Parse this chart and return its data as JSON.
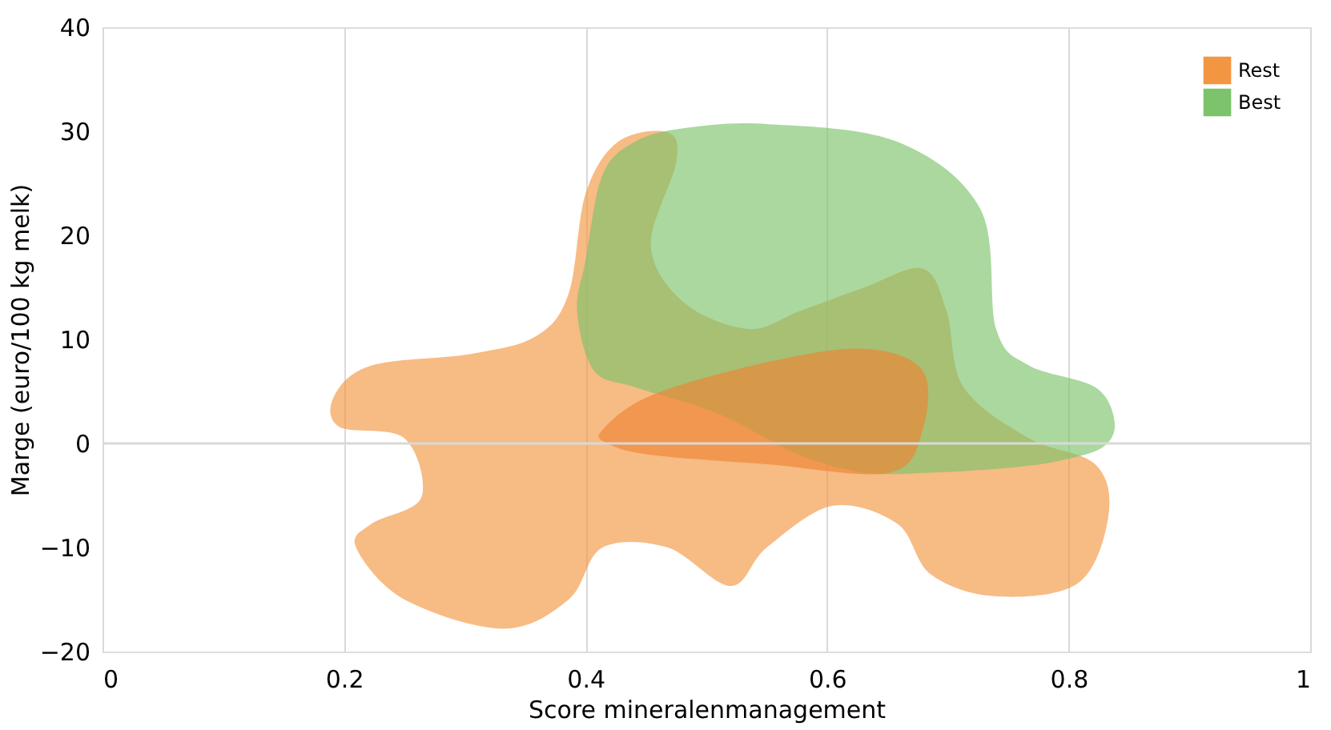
{
  "chart_data": {
    "type": "area",
    "xlabel": "Score mineralenmanagement",
    "ylabel": "Marge (euro/100 kg melk)",
    "xlim": [
      0,
      1
    ],
    "xticks": [
      0,
      0.2,
      0.4,
      0.6,
      0.8,
      1
    ],
    "ylim": [
      -20,
      40
    ],
    "yticks": [
      -20,
      -10,
      0,
      10,
      20,
      30,
      40
    ],
    "grid": "x",
    "legend": "top right",
    "ref_lines": [
      {
        "axis": "y",
        "value": 0,
        "color": "#d9d9d9"
      }
    ],
    "series": [
      {
        "name": "Rest",
        "color": "#f39642",
        "x": [
          0.192,
          0.223,
          0.305,
          0.359,
          0.386,
          0.4,
          0.427,
          0.468,
          0.475,
          0.454,
          0.482,
          0.535,
          0.577,
          0.631,
          0.679,
          0.699,
          0.713,
          0.767,
          0.822,
          0.833,
          0.808,
          0.74,
          0.686,
          0.658,
          0.604,
          0.55,
          0.52,
          0.468,
          0.414,
          0.386,
          0.332,
          0.25,
          0.21,
          0.223,
          0.264,
          0.25,
          0.196
        ],
        "values": [
          4.6,
          7.5,
          8.6,
          10.3,
          14.4,
          24,
          29,
          29.9,
          27,
          19,
          13.5,
          11,
          12.7,
          15,
          16.8,
          12.7,
          5.4,
          0.5,
          -2,
          -6.9,
          -13.4,
          -14.7,
          -12.6,
          -7.7,
          -6,
          -10,
          -13.7,
          -10,
          -10,
          -15,
          -17.8,
          -15,
          -10,
          -7.7,
          -5.2,
          0.5,
          1.6
        ]
      },
      {
        "name": "Best",
        "color": "#7cc36b",
        "x": [
          0.4,
          0.414,
          0.441,
          0.482,
          0.55,
          0.658,
          0.727,
          0.74,
          0.767,
          0.822,
          0.838,
          0.829,
          0.795,
          0.754,
          0.686,
          0.631,
          0.577,
          0.509,
          0.441,
          0.407,
          0.393
        ],
        "values": [
          17.6,
          25.8,
          29,
          30.3,
          30.7,
          29,
          22.5,
          11,
          7.5,
          5.4,
          2.1,
          -0.3,
          -1.6,
          -2.3,
          -2.8,
          -2.8,
          -1.1,
          2.9,
          5.4,
          7,
          12.7
        ]
      },
      {
        "color": "#ee8433",
        "x": [
          0.414,
          0.454,
          0.55,
          0.631,
          0.679,
          0.679,
          0.652,
          0.55,
          0.454,
          0.418
        ],
        "values": [
          1.3,
          4.6,
          7.8,
          9.1,
          7,
          1.3,
          -2.8,
          -2,
          -1.1,
          0
        ]
      }
    ]
  }
}
